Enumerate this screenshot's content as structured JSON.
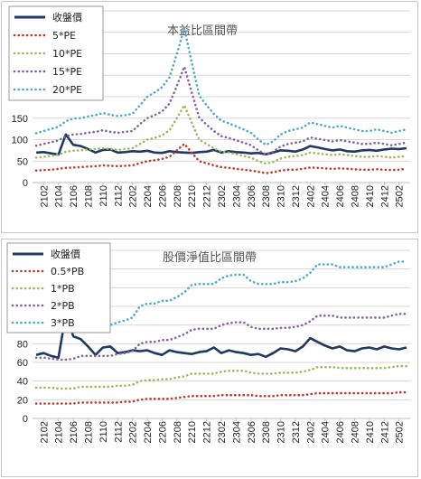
{
  "chart_data": [
    {
      "type": "line",
      "title": "本益比區間帶",
      "xlabel": "",
      "ylabel": "",
      "ylim": [
        0,
        400
      ],
      "yticks": [
        0,
        50,
        100,
        150,
        200,
        250,
        300,
        350,
        400
      ],
      "grid": "horizontal",
      "legend": "top-left",
      "x": [
        "2101",
        "2102",
        "2103",
        "2104",
        "2105",
        "2106",
        "2107",
        "2108",
        "2109",
        "2110",
        "2111",
        "2112",
        "2201",
        "2202",
        "2203",
        "2204",
        "2205",
        "2206",
        "2207",
        "2208",
        "2209",
        "2210",
        "2211",
        "2212",
        "2301",
        "2302",
        "2303",
        "2304",
        "2305",
        "2306",
        "2307",
        "2308",
        "2309",
        "2310",
        "2311",
        "2312",
        "2401",
        "2402",
        "2403",
        "2404",
        "2405",
        "2406",
        "2407",
        "2408",
        "2409",
        "2410",
        "2411",
        "2412",
        "2501",
        "2502",
        "2503"
      ],
      "xtick_labels": [
        "2102",
        "2104",
        "2106",
        "2108",
        "2110",
        "2112",
        "2202",
        "2204",
        "2206",
        "2208",
        "2210",
        "2212",
        "2302",
        "2304",
        "2306",
        "2308",
        "2310",
        "2312",
        "2402",
        "2404",
        "2406",
        "2408",
        "2410",
        "2412",
        "2502"
      ],
      "series": [
        {
          "name": "收盤價",
          "color": "#1f3864",
          "style": "solid",
          "values": [
            70,
            71,
            68,
            65,
            112,
            88,
            85,
            78,
            70,
            76,
            77,
            70,
            71,
            73,
            72,
            74,
            70,
            69,
            73,
            71,
            70,
            69,
            71,
            72,
            76,
            70,
            73,
            71,
            70,
            68,
            69,
            66,
            70,
            75,
            74,
            72,
            77,
            85,
            82,
            78,
            75,
            77,
            73,
            72,
            75,
            76,
            74,
            77,
            79,
            78,
            80
          ]
        },
        {
          "name": "5*PE",
          "color": "#c0392b",
          "style": "dotted",
          "values": [
            28,
            29,
            30,
            32,
            34,
            35,
            36,
            37,
            38,
            40,
            39,
            38,
            39,
            40,
            45,
            50,
            52,
            55,
            60,
            75,
            90,
            70,
            50,
            45,
            40,
            36,
            34,
            32,
            30,
            28,
            25,
            22,
            24,
            28,
            30,
            30,
            32,
            35,
            34,
            33,
            32,
            33,
            32,
            31,
            30,
            30,
            31,
            30,
            29,
            30,
            32
          ]
        },
        {
          "name": "10*PE",
          "color": "#9bbb59",
          "style": "dotted",
          "values": [
            58,
            60,
            62,
            65,
            72,
            74,
            75,
            77,
            78,
            80,
            78,
            76,
            78,
            80,
            90,
            100,
            104,
            110,
            122,
            150,
            180,
            140,
            100,
            90,
            80,
            72,
            70,
            66,
            62,
            58,
            50,
            44,
            48,
            56,
            60,
            62,
            64,
            70,
            68,
            66,
            64,
            66,
            64,
            62,
            60,
            60,
            62,
            60,
            58,
            60,
            62
          ]
        },
        {
          "name": "15*PE",
          "color": "#8064a2",
          "style": "dotted",
          "values": [
            86,
            90,
            94,
            98,
            108,
            112,
            113,
            116,
            118,
            122,
            118,
            116,
            118,
            120,
            136,
            150,
            157,
            166,
            184,
            225,
            270,
            210,
            152,
            135,
            120,
            108,
            104,
            98,
            93,
            87,
            75,
            66,
            72,
            84,
            90,
            93,
            96,
            105,
            102,
            99,
            96,
            99,
            96,
            93,
            90,
            90,
            93,
            90,
            87,
            90,
            93
          ]
        },
        {
          "name": "20*PE",
          "color": "#4bacc6",
          "style": "dotted",
          "values": [
            115,
            120,
            125,
            130,
            143,
            149,
            150,
            154,
            157,
            162,
            158,
            155,
            157,
            160,
            180,
            200,
            210,
            222,
            245,
            300,
            360,
            280,
            203,
            180,
            160,
            144,
            138,
            131,
            124,
            116,
            100,
            88,
            96,
            112,
            120,
            124,
            128,
            140,
            136,
            132,
            128,
            132,
            128,
            124,
            120,
            120,
            124,
            120,
            116,
            120,
            124
          ]
        }
      ]
    },
    {
      "type": "line",
      "title": "股價淨值比區間帶",
      "xlabel": "",
      "ylabel": "",
      "ylim": [
        0,
        180
      ],
      "yticks": [
        0,
        20,
        40,
        60,
        80,
        100,
        120,
        140,
        160,
        180
      ],
      "grid": "horizontal",
      "legend": "top-left",
      "x": [
        "2101",
        "2102",
        "2103",
        "2104",
        "2105",
        "2106",
        "2107",
        "2108",
        "2109",
        "2110",
        "2111",
        "2112",
        "2201",
        "2202",
        "2203",
        "2204",
        "2205",
        "2206",
        "2207",
        "2208",
        "2209",
        "2210",
        "2211",
        "2212",
        "2301",
        "2302",
        "2303",
        "2304",
        "2305",
        "2306",
        "2307",
        "2308",
        "2309",
        "2310",
        "2311",
        "2312",
        "2401",
        "2402",
        "2403",
        "2404",
        "2405",
        "2406",
        "2407",
        "2408",
        "2409",
        "2410",
        "2411",
        "2412",
        "2501",
        "2502",
        "2503"
      ],
      "xtick_labels": [
        "2102",
        "2104",
        "2106",
        "2108",
        "2110",
        "2112",
        "2202",
        "2204",
        "2206",
        "2208",
        "2210",
        "2212",
        "2302",
        "2304",
        "2306",
        "2308",
        "2310",
        "2312",
        "2402",
        "2404",
        "2406",
        "2408",
        "2410",
        "2412",
        "2502"
      ],
      "series": [
        {
          "name": "收盤價",
          "color": "#1f3864",
          "style": "solid",
          "values": [
            68,
            70,
            67,
            65,
            112,
            88,
            85,
            77,
            68,
            76,
            77,
            70,
            71,
            73,
            72,
            73,
            70,
            68,
            73,
            71,
            70,
            69,
            71,
            72,
            76,
            70,
            73,
            71,
            70,
            68,
            69,
            66,
            70,
            75,
            74,
            72,
            77,
            86,
            82,
            78,
            75,
            77,
            73,
            72,
            75,
            76,
            74,
            77,
            75,
            74,
            76
          ]
        },
        {
          "name": "0.5*PB",
          "color": "#c0392b",
          "style": "dotted",
          "values": [
            16,
            16,
            16,
            16,
            16,
            16,
            17,
            17,
            17,
            17,
            17,
            17,
            18,
            18,
            20,
            21,
            21,
            21,
            21,
            22,
            23,
            24,
            24,
            24,
            24,
            25,
            25,
            25,
            25,
            25,
            24,
            24,
            24,
            25,
            25,
            25,
            25,
            26,
            27,
            27,
            27,
            27,
            27,
            27,
            27,
            27,
            27,
            27,
            27,
            28,
            28
          ]
        },
        {
          "name": "1*PB",
          "color": "#9bbb59",
          "style": "dotted",
          "values": [
            33,
            33,
            33,
            32,
            32,
            32,
            34,
            34,
            34,
            34,
            34,
            35,
            35,
            36,
            40,
            41,
            41,
            42,
            42,
            44,
            45,
            48,
            48,
            48,
            48,
            50,
            51,
            51,
            51,
            49,
            48,
            48,
            48,
            49,
            49,
            49,
            50,
            52,
            55,
            55,
            55,
            54,
            54,
            54,
            54,
            54,
            54,
            54,
            55,
            56,
            56
          ]
        },
        {
          "name": "2*PB",
          "color": "#8064a2",
          "style": "dotted",
          "values": [
            65,
            65,
            64,
            63,
            63,
            64,
            67,
            67,
            67,
            67,
            67,
            69,
            70,
            72,
            80,
            82,
            82,
            84,
            84,
            87,
            90,
            95,
            96,
            96,
            96,
            100,
            102,
            103,
            103,
            98,
            96,
            96,
            96,
            97,
            97,
            98,
            100,
            104,
            110,
            110,
            110,
            108,
            108,
            108,
            108,
            108,
            108,
            108,
            110,
            112,
            112
          ]
        },
        {
          "name": "3*PB",
          "color": "#4bacc6",
          "style": "dotted",
          "values": [
            98,
            98,
            96,
            95,
            95,
            96,
            100,
            100,
            100,
            100,
            100,
            103,
            105,
            108,
            120,
            123,
            123,
            126,
            126,
            130,
            135,
            143,
            144,
            144,
            144,
            150,
            153,
            154,
            154,
            147,
            144,
            144,
            144,
            146,
            146,
            147,
            150,
            156,
            165,
            165,
            165,
            162,
            162,
            162,
            162,
            162,
            162,
            162,
            165,
            168,
            168
          ]
        }
      ]
    }
  ]
}
